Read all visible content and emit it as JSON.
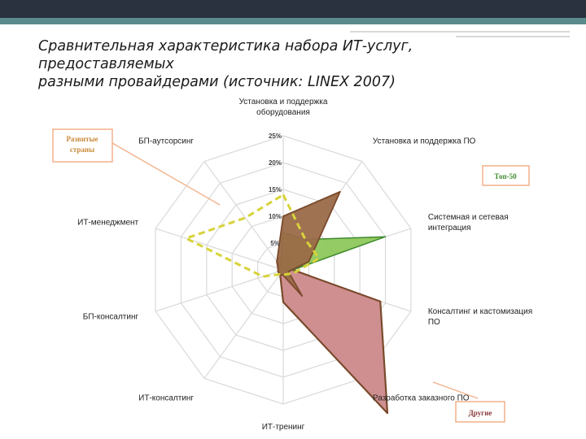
{
  "title_lines": [
    "Сравнительная характеристика набора ИТ-услуг,",
    "предоставляемых",
    "разными провайдерами (источник: LINEX 2007)"
  ],
  "colors": {
    "header_dark": "#2a3240",
    "header_accent": "#5b8a8c",
    "grid": "#d9d9d9",
    "developed": "#d7d33a",
    "top50_fill": "#8ac553",
    "top50_stroke": "#3e8a2e",
    "others_fill": "#cf8f90",
    "others_stroke": "#7a4a2c",
    "brown_fill": "#9a6a48"
  },
  "chart_data": {
    "type": "radar",
    "axes": [
      "Установка и поддержка оборудования",
      "Установка и поддержка ПО",
      "Системная и сетевая интеграция",
      "Консалтинг и кастомизация ПО",
      "Разработка заказного ПО",
      "ИТ-тренинг",
      "ИТ-консалтинг",
      "БП-консалтинг",
      "ИТ-менеджмент",
      "БП-аутсорсинг"
    ],
    "axis_label_lines": [
      [
        "Установка и поддержка",
        "оборудования"
      ],
      [
        "Установка и поддержка ПО"
      ],
      [
        "Системная и сетевая",
        "интеграция"
      ],
      [
        "Консалтинг и кастомизация",
        "ПО"
      ],
      [
        "Разработка заказного ПО"
      ],
      [
        "ИТ-тренинг"
      ],
      [
        "ИТ-консалтинг"
      ],
      [
        "БП-консалтинг"
      ],
      [
        "ИТ-менеджмент"
      ],
      [
        "БП-аутсорсинг"
      ]
    ],
    "ticks": [
      "5%",
      "10%",
      "15%",
      "20%",
      "25%"
    ],
    "tick_values": [
      5,
      10,
      15,
      20,
      25
    ],
    "rmax": 25,
    "series": [
      {
        "name": "Другие",
        "values": [
          3,
          3,
          1,
          19,
          33,
          6,
          1,
          1,
          1,
          2
        ]
      },
      {
        "name": "Топ-50",
        "values": [
          7,
          7,
          20,
          1,
          2,
          1,
          1,
          1,
          1,
          1
        ]
      },
      {
        "name": "",
        "values": [
          10,
          18,
          5,
          1,
          6,
          1,
          1,
          1,
          1,
          2
        ]
      },
      {
        "name": "Развитые страны",
        "values": [
          14,
          7,
          7,
          2,
          1,
          1,
          1,
          4,
          19,
          12
        ]
      }
    ],
    "legend": {
      "developed": [
        "Развитые",
        "страны"
      ],
      "top50": "Топ-50",
      "others": "Другие"
    }
  }
}
